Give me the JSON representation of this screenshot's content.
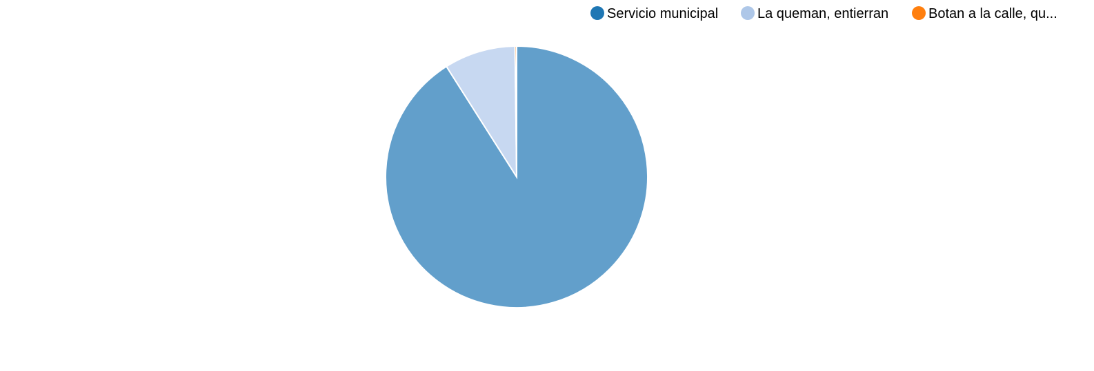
{
  "chart_data": {
    "type": "pie",
    "categories": [
      "Servicio municipal",
      "La queman, entierran",
      "Botan a la calle, qu..."
    ],
    "values": [
      91.0,
      8.8,
      0.2
    ],
    "unit": "%",
    "legend_position": "top-right",
    "legend_colors": [
      "#1f77b4",
      "#aec7e8",
      "#ff7f0e"
    ],
    "slice_colors": [
      "#629fcb",
      "#c7d8f1",
      "#ff7f0e"
    ]
  }
}
